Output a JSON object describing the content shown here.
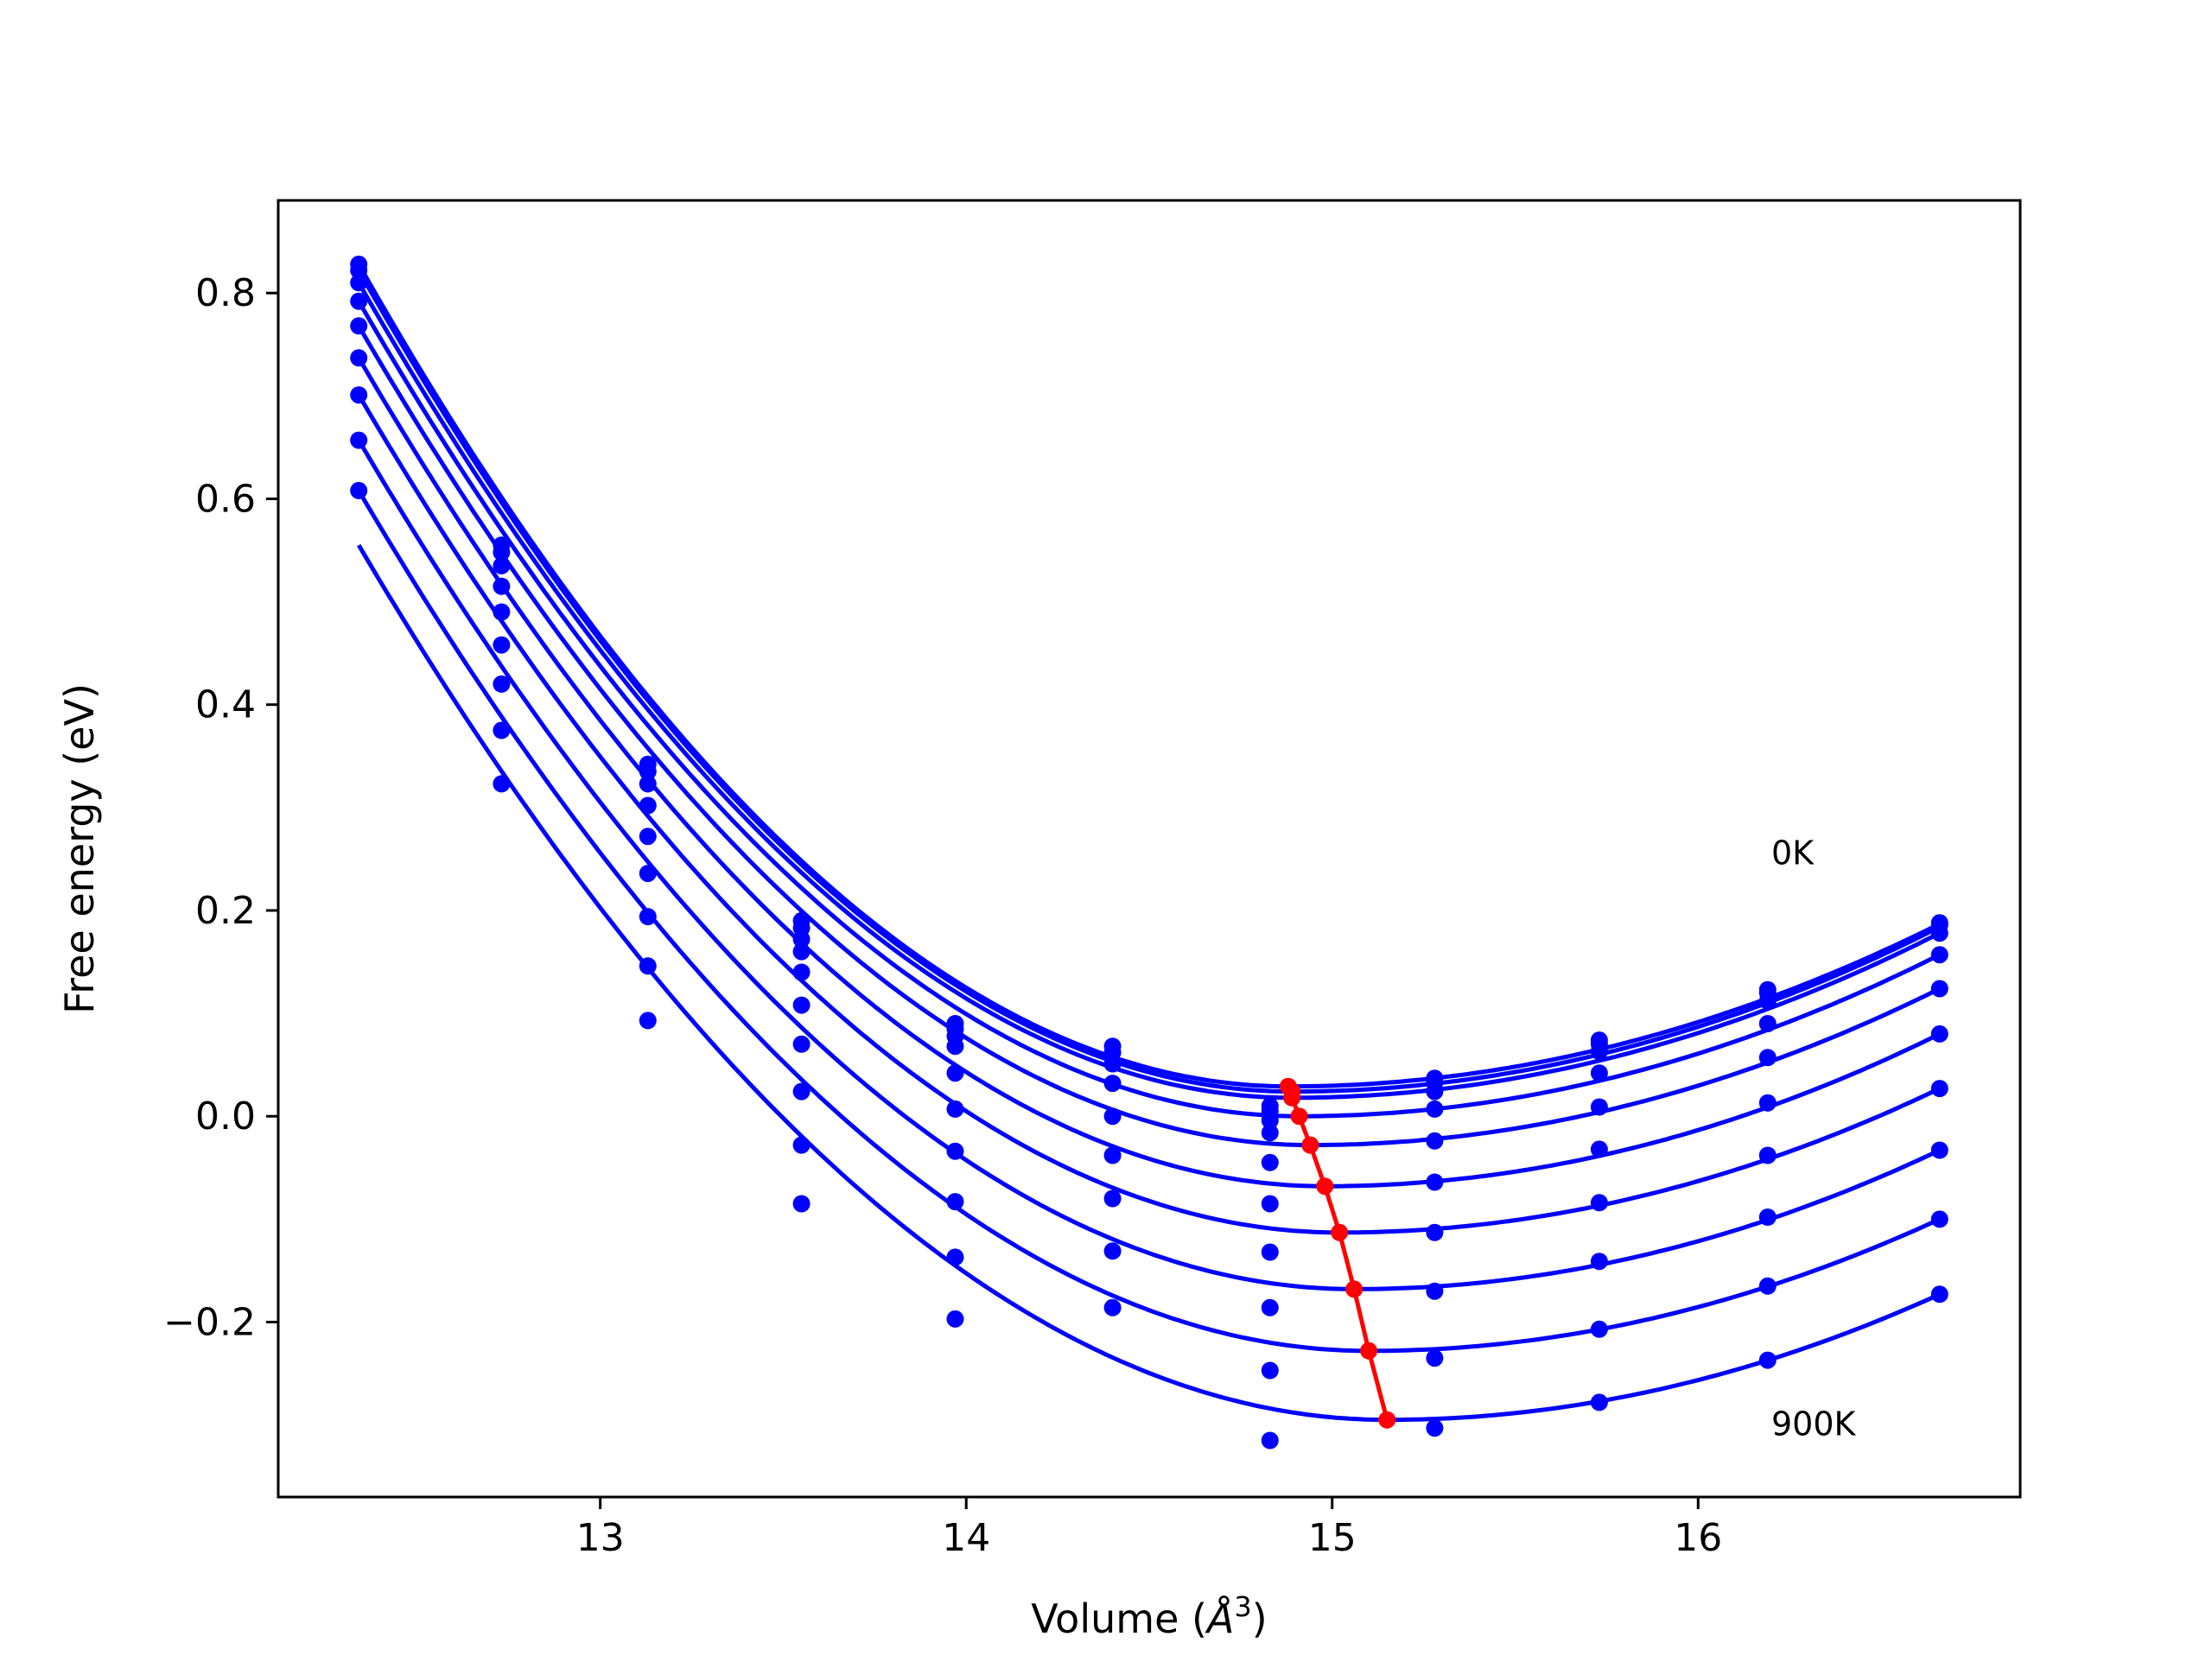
{
  "chart_data": {
    "type": "line",
    "title": "",
    "xlabel": "Volume (",
    "xlabel_unit": "Å",
    "xlabel_sup": "3",
    "xlabel_close": ")",
    "ylabel": "Free energy (eV)",
    "xlim": [
      12.12,
      16.88
    ],
    "ylim": [
      -0.37,
      0.89
    ],
    "xticks": [
      13,
      14,
      15,
      16
    ],
    "xtick_labels": [
      "13",
      "14",
      "15",
      "16"
    ],
    "yticks": [
      -0.2,
      0.0,
      0.2,
      0.4,
      0.6,
      0.8
    ],
    "ytick_labels": [
      "−0.2",
      "0.0",
      "0.2",
      "0.4",
      "0.6",
      "0.8"
    ],
    "grid": false,
    "legend": "none",
    "colors": {
      "series": "#0000ff",
      "equilibrium": "#ff0000"
    },
    "annotations": [
      {
        "text": "0K",
        "x": 16.2,
        "y": 0.245
      },
      {
        "text": "900K",
        "x": 16.2,
        "y": -0.31
      }
    ],
    "volumes": [
      12.34,
      12.73,
      13.13,
      13.55,
      13.97,
      14.4,
      14.83,
      15.28,
      15.73,
      16.19,
      16.66
    ],
    "series": [
      {
        "values": [
          0.828,
          0.555,
          0.342,
          0.19,
          0.09,
          0.068,
          0.01,
          0.037,
          0.074,
          0.123,
          0.188
        ],
        "fit_min": [
          14.88,
          0.029
        ],
        "curve_end": 0.187
      },
      {
        "values": [
          0.822,
          0.548,
          0.335,
          0.183,
          0.085,
          0.062,
          0.005,
          0.033,
          0.07,
          0.12,
          0.186
        ],
        "fit_min": [
          14.89,
          0.024
        ],
        "curve_end": 0.184
      },
      {
        "values": [
          0.81,
          0.535,
          0.323,
          0.172,
          0.078,
          0.051,
          -0.004,
          0.024,
          0.063,
          0.112,
          0.178
        ],
        "fit_min": [
          14.89,
          0.018
        ],
        "curve_end": 0.178
      },
      {
        "values": [
          0.792,
          0.515,
          0.302,
          0.16,
          0.068,
          0.032,
          -0.016,
          0.007,
          0.042,
          0.09,
          0.157
        ],
        "fit_min": [
          14.91,
          0.0
        ],
        "curve_end": 0.157
      },
      {
        "values": [
          0.768,
          0.49,
          0.272,
          0.14,
          0.042,
          0.0,
          -0.045,
          -0.024,
          0.009,
          0.057,
          0.124
        ],
        "fit_min": [
          14.94,
          -0.028
        ],
        "curve_end": 0.124
      },
      {
        "values": [
          0.737,
          0.458,
          0.236,
          0.108,
          0.007,
          -0.038,
          -0.085,
          -0.064,
          -0.032,
          0.013,
          0.08
        ],
        "fit_min": [
          14.98,
          -0.068
        ],
        "curve_end": 0.08
      },
      {
        "values": [
          0.701,
          0.42,
          0.194,
          0.07,
          -0.034,
          -0.08,
          -0.132,
          -0.113,
          -0.084,
          -0.038,
          0.027
        ],
        "fit_min": [
          15.02,
          -0.113
        ],
        "curve_end": 0.027
      },
      {
        "values": [
          0.657,
          0.375,
          0.146,
          0.024,
          -0.083,
          -0.131,
          -0.186,
          -0.17,
          -0.141,
          -0.098,
          -0.033
        ],
        "fit_min": [
          15.06,
          -0.168
        ],
        "curve_end": -0.033
      },
      {
        "values": [
          0.608,
          0.323,
          0.093,
          -0.028,
          -0.137,
          -0.186,
          -0.247,
          -0.235,
          -0.207,
          -0.165,
          -0.1
        ],
        "fit_min": [
          15.1,
          -0.228
        ],
        "curve_end": -0.1
      },
      {
        "values": [
          null,
          null,
          null,
          -0.085,
          -0.197,
          null,
          -0.315,
          -0.303,
          -0.278,
          -0.237,
          -0.173
        ],
        "fit_min": [
          15.15,
          -0.295
        ],
        "curve_end": -0.173
      }
    ],
    "equilibrium": {
      "x": [
        14.88,
        14.89,
        14.89,
        14.91,
        14.94,
        14.98,
        15.02,
        15.06,
        15.1,
        15.15
      ],
      "y": [
        0.029,
        0.024,
        0.018,
        0.0,
        -0.028,
        -0.068,
        -0.113,
        -0.168,
        -0.228,
        -0.295
      ]
    }
  }
}
